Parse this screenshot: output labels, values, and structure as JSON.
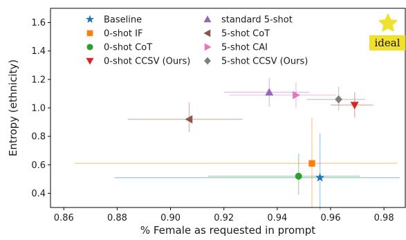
{
  "chart_data": {
    "type": "scatter",
    "xlabel": "% Female as requested in prompt",
    "ylabel": "Entropy (ethnicity)",
    "xlim": [
      0.855,
      0.988
    ],
    "ylim": [
      0.3,
      1.7
    ],
    "xticks": [
      "0.86",
      "0.88",
      "0.90",
      "0.92",
      "0.94",
      "0.96",
      "0.98"
    ],
    "xtick_values": [
      0.86,
      0.88,
      0.9,
      0.92,
      0.94,
      0.96,
      0.98
    ],
    "yticks": [
      "0.4",
      "0.6",
      "0.8",
      "1.0",
      "1.2",
      "1.4",
      "1.6"
    ],
    "ytick_values": [
      0.4,
      0.6,
      0.8,
      1.0,
      1.2,
      1.4,
      1.6
    ],
    "grid": false,
    "legend_position": "upper-center",
    "legend_columns": 2,
    "series": [
      {
        "name": "Baseline",
        "marker": "star",
        "color": "#1f77b4",
        "x": 0.956,
        "y": 0.51,
        "xerr": [
          0.879,
          0.986
        ],
        "yerr": [
          0.28,
          0.82
        ]
      },
      {
        "name": "0-shot IF",
        "marker": "square",
        "color": "#ff7f0e",
        "x": 0.953,
        "y": 0.61,
        "xerr": [
          0.864,
          0.985
        ],
        "yerr": [
          0.3,
          0.93
        ]
      },
      {
        "name": "0-shot CoT",
        "marker": "circle",
        "color": "#2ca02c",
        "x": 0.948,
        "y": 0.52,
        "xerr": [
          0.914,
          0.971
        ],
        "yerr": [
          0.39,
          0.68
        ]
      },
      {
        "name": "0-shot CCSV (Ours)",
        "marker": "triangle-down",
        "color": "#d62728",
        "x": 0.969,
        "y": 1.02,
        "xerr": [
          0.96,
          0.976
        ],
        "yerr": [
          0.93,
          1.11
        ]
      },
      {
        "name": "standard 5-shot",
        "marker": "triangle-up",
        "color": "#9467bd",
        "x": 0.937,
        "y": 1.11,
        "xerr": [
          0.92,
          0.952
        ],
        "yerr": [
          1.01,
          1.21
        ]
      },
      {
        "name": "5-shot CoT",
        "marker": "triangle-left",
        "color": "#8c564b",
        "x": 0.907,
        "y": 0.92,
        "xerr": [
          0.884,
          0.927
        ],
        "yerr": [
          0.83,
          1.04
        ]
      },
      {
        "name": "5-shot CAI",
        "marker": "triangle-right",
        "color": "#e377c2",
        "x": 0.947,
        "y": 1.09,
        "xerr": [
          0.922,
          0.962
        ],
        "yerr": [
          1.0,
          1.18
        ]
      },
      {
        "name": "5-shot CCSV (Ours)",
        "marker": "diamond",
        "color": "#7f7f7f",
        "x": 0.963,
        "y": 1.06,
        "xerr": [
          0.951,
          0.973
        ],
        "yerr": [
          0.98,
          1.15
        ]
      }
    ],
    "annotation": {
      "text": "ideal",
      "icon": "star-icon",
      "color": "#f2e02e"
    }
  }
}
